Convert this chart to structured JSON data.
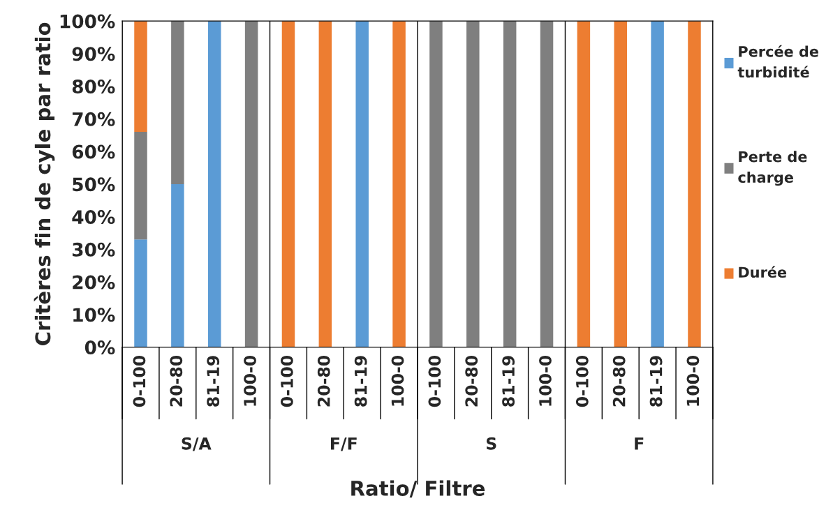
{
  "chart_data": {
    "type": "bar",
    "stacked": true,
    "xlabel": "Ratio/ Filtre",
    "ylabel": "Critères fin de cyle par ratio",
    "categories": [
      "0-100",
      "20-80",
      "81-19",
      "100-0",
      "0-100",
      "20-80",
      "81-19",
      "100-0",
      "0-100",
      "20-80",
      "81-19",
      "100-0",
      "0-100",
      "20-80",
      "81-19",
      "100-0"
    ],
    "series": [
      {
        "name": "Percée de turbidité",
        "color": "#5b9bd5",
        "values": [
          33,
          50,
          100,
          0,
          0,
          0,
          100,
          0,
          0,
          0,
          0,
          0,
          0,
          0,
          100,
          0
        ]
      },
      {
        "name": "Perte de charge",
        "color": "#7f7f7f",
        "values": [
          33,
          50,
          0,
          100,
          0,
          0,
          0,
          0,
          100,
          100,
          100,
          100,
          0,
          0,
          0,
          0
        ]
      },
      {
        "name": "Durée",
        "color": "#ed7d31",
        "values": [
          34,
          0,
          0,
          0,
          100,
          100,
          0,
          100,
          0,
          0,
          0,
          0,
          100,
          100,
          0,
          100
        ]
      }
    ],
    "ylim": [
      0,
      100
    ],
    "yticks": [
      {
        "value": 0,
        "label": "0%"
      },
      {
        "value": 10,
        "label": "10%"
      },
      {
        "value": 20,
        "label": "20%"
      },
      {
        "value": 30,
        "label": "30%"
      },
      {
        "value": 40,
        "label": "40%"
      },
      {
        "value": 50,
        "label": "50%"
      },
      {
        "value": 60,
        "label": "60%"
      },
      {
        "value": 70,
        "label": "70%"
      },
      {
        "value": 80,
        "label": "80%"
      },
      {
        "value": 90,
        "label": "90%"
      },
      {
        "value": 100,
        "label": "100%"
      }
    ],
    "annotations": [
      "S/A",
      "F/F",
      "S",
      "F"
    ],
    "legend": "right",
    "grid": false
  }
}
